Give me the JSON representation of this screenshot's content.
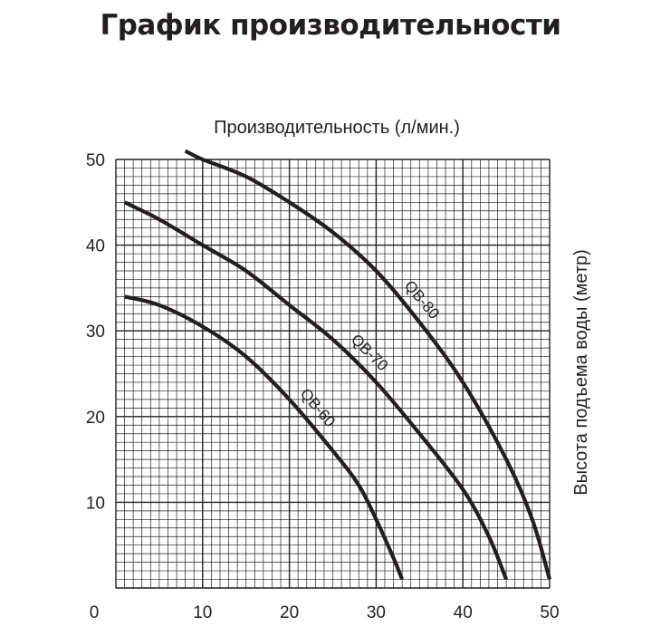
{
  "title": "График производительности",
  "chart_data": {
    "type": "line",
    "title": "График производительности",
    "xlabel": "Производительность (л/мин.)",
    "ylabel": "Высота подъема воды (метр)",
    "xlim": [
      0,
      50
    ],
    "ylim": [
      0,
      50
    ],
    "x_ticks": [
      10,
      20,
      30,
      40,
      50
    ],
    "y_ticks": [
      10,
      20,
      30,
      40,
      50
    ],
    "origin_label": "0",
    "grid": true,
    "colors": {
      "line": "#231f20",
      "grid": "#231f20",
      "background": "#ffffff"
    },
    "series": [
      {
        "name": "QB-60",
        "points": [
          [
            1,
            34
          ],
          [
            5,
            33
          ],
          [
            10,
            30.5
          ],
          [
            15,
            27
          ],
          [
            20,
            22
          ],
          [
            25,
            16
          ],
          [
            28,
            12
          ],
          [
            30,
            8
          ],
          [
            32,
            3.5
          ],
          [
            33,
            1
          ]
        ]
      },
      {
        "name": "QB-70",
        "points": [
          [
            1,
            45
          ],
          [
            5,
            43
          ],
          [
            10,
            40
          ],
          [
            15,
            37
          ],
          [
            20,
            33
          ],
          [
            25,
            29
          ],
          [
            30,
            24
          ],
          [
            35,
            18
          ],
          [
            40,
            11.5
          ],
          [
            43,
            6
          ],
          [
            45,
            1
          ]
        ]
      },
      {
        "name": "QB-80",
        "points": [
          [
            8,
            51
          ],
          [
            10,
            50
          ],
          [
            15,
            48
          ],
          [
            20,
            45
          ],
          [
            25,
            41.5
          ],
          [
            30,
            37
          ],
          [
            35,
            31
          ],
          [
            40,
            24
          ],
          [
            45,
            15
          ],
          [
            48,
            8
          ],
          [
            50,
            1
          ]
        ]
      }
    ]
  }
}
